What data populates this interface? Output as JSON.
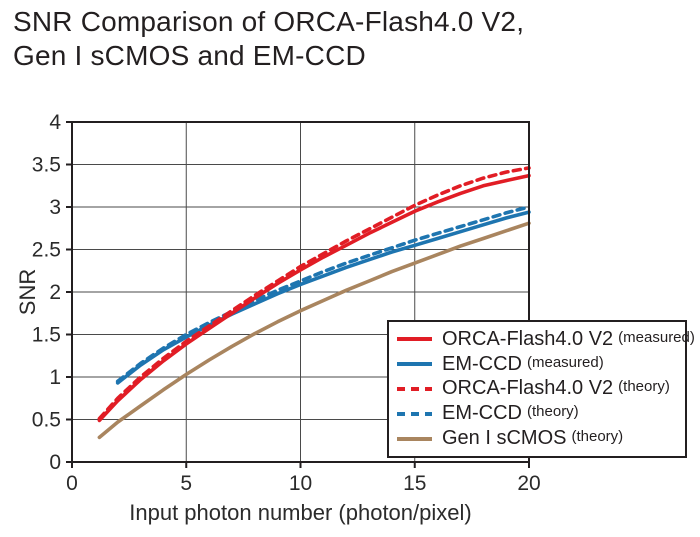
{
  "title": {
    "line1": "SNR Comparison of ORCA-Flash4.0 V2,",
    "line2": "Gen I sCMOS and EM-CCD"
  },
  "colors": {
    "red": "#e11d25",
    "blue": "#1e75b0",
    "brown": "#a9855f",
    "axis": "#231f20",
    "grid": "#4a4a4a",
    "text": "#2b2b2b"
  },
  "chart_data": {
    "type": "line",
    "title": "SNR Comparison of ORCA-Flash4.0 V2, Gen I sCMOS and EM-CCD",
    "xlabel": "Input photon number (photon/pixel)",
    "ylabel": "SNR",
    "xlim": [
      0,
      20
    ],
    "ylim": [
      0,
      4
    ],
    "x_ticks": [
      0,
      5,
      10,
      15,
      20
    ],
    "y_ticks": [
      0,
      0.5,
      1,
      1.5,
      2,
      2.5,
      3,
      3.5,
      4
    ],
    "grid": true,
    "legend_position": "lower right, overlapping plot",
    "draw_order": [
      4,
      3,
      1,
      2,
      0
    ],
    "series": [
      {
        "id": "orca-measured",
        "label": "ORCA-Flash4.0 V2",
        "note": "(measured)",
        "color_key": "red",
        "style": "solid",
        "x": [
          1.2,
          2,
          3,
          4,
          5,
          6,
          7,
          8,
          9,
          10,
          11,
          12,
          13,
          14,
          15,
          16,
          17,
          18,
          19,
          20
        ],
        "y": [
          0.49,
          0.72,
          0.97,
          1.19,
          1.39,
          1.57,
          1.75,
          1.93,
          2.1,
          2.26,
          2.41,
          2.55,
          2.69,
          2.82,
          2.95,
          3.06,
          3.16,
          3.25,
          3.31,
          3.37
        ]
      },
      {
        "id": "emccd-measured",
        "label": "EM-CCD",
        "note": "(measured)",
        "color_key": "blue",
        "style": "solid",
        "x": [
          2,
          3,
          4,
          5,
          6,
          7,
          8,
          9,
          10,
          11,
          12,
          13,
          14,
          15,
          16,
          17,
          18,
          19,
          20
        ],
        "y": [
          0.93,
          1.14,
          1.32,
          1.47,
          1.61,
          1.74,
          1.86,
          1.98,
          2.09,
          2.19,
          2.29,
          2.38,
          2.47,
          2.55,
          2.63,
          2.71,
          2.79,
          2.87,
          2.94
        ]
      },
      {
        "id": "orca-theory",
        "label": "ORCA-Flash4.0 V2",
        "note": "(theory)",
        "color_key": "red",
        "style": "dashed",
        "x": [
          1.2,
          2,
          3,
          4,
          5,
          6,
          7,
          8,
          9,
          10,
          11,
          12,
          13,
          14,
          15,
          16,
          17,
          18,
          19,
          20
        ],
        "y": [
          0.51,
          0.75,
          1.0,
          1.22,
          1.42,
          1.6,
          1.78,
          1.96,
          2.13,
          2.3,
          2.45,
          2.6,
          2.74,
          2.88,
          3.02,
          3.14,
          3.25,
          3.34,
          3.41,
          3.46
        ]
      },
      {
        "id": "emccd-theory",
        "label": "EM-CCD",
        "note": "(theory)",
        "color_key": "blue",
        "style": "dashed",
        "x": [
          2,
          3,
          4,
          5,
          6,
          7,
          8,
          9,
          10,
          11,
          12,
          13,
          14,
          15,
          16,
          17,
          18,
          19,
          20
        ],
        "y": [
          0.95,
          1.16,
          1.34,
          1.5,
          1.64,
          1.77,
          1.9,
          2.02,
          2.13,
          2.24,
          2.34,
          2.43,
          2.52,
          2.61,
          2.69,
          2.77,
          2.85,
          2.93,
          3.0
        ]
      },
      {
        "id": "gen1-scmos-theory",
        "label": "Gen I sCMOS",
        "note": "(theory)",
        "color_key": "brown",
        "style": "solid",
        "x": [
          1.2,
          2,
          3,
          4,
          5,
          6,
          7,
          8,
          9,
          10,
          11,
          12,
          13,
          14,
          15,
          16,
          17,
          18,
          19,
          20
        ],
        "y": [
          0.29,
          0.47,
          0.66,
          0.85,
          1.03,
          1.2,
          1.36,
          1.51,
          1.65,
          1.78,
          1.9,
          2.02,
          2.13,
          2.24,
          2.34,
          2.44,
          2.54,
          2.63,
          2.72,
          2.81
        ]
      }
    ]
  },
  "axes": {
    "y_label": "SNR",
    "x_label": "Input photon number (photon/pixel)"
  }
}
